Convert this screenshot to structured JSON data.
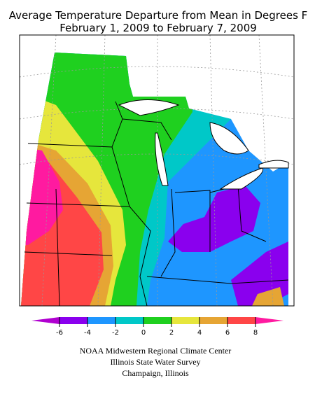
{
  "title": [
    "Average Temperature Departure from Mean in Degrees F",
    "February 1, 2009 to February 7, 2009"
  ],
  "legend": {
    "ticks": [
      -6,
      -4,
      -2,
      0,
      2,
      4,
      6,
      8
    ],
    "colors": [
      "#b000d0",
      "#8a00ee",
      "#1e96ff",
      "#00c8c8",
      "#1fd01f",
      "#e6e63c",
      "#e6a534",
      "#ff4646",
      "#ff1aa0"
    ]
  },
  "credits": [
    "NOAA Midwestern Regional Climate Center",
    "Illinois State Water Survey",
    "Champaign, Illinois"
  ]
}
